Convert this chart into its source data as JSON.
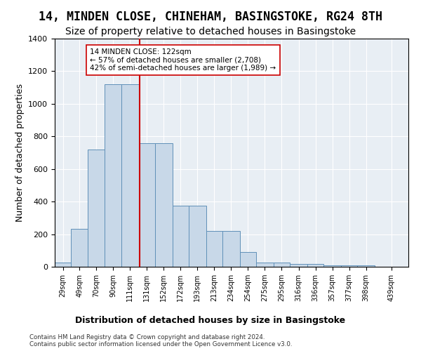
{
  "title": "14, MINDEN CLOSE, CHINEHAM, BASINGSTOKE, RG24 8TH",
  "subtitle": "Size of property relative to detached houses in Basingstoke",
  "xlabel": "Distribution of detached houses by size in Basingstoke",
  "ylabel": "Number of detached properties",
  "bar_color": "#c8d8e8",
  "bar_edge_color": "#6090b8",
  "bar_heights": [
    28,
    234,
    720,
    1120,
    1120,
    760,
    760,
    375,
    375,
    220,
    220,
    90,
    28,
    28,
    18,
    18,
    10,
    8,
    8,
    0
  ],
  "bin_labels": [
    "29sqm",
    "49sqm",
    "70sqm",
    "90sqm",
    "111sqm",
    "131sqm",
    "152sqm",
    "172sqm",
    "193sqm",
    "213sqm",
    "234sqm",
    "254sqm",
    "275sqm",
    "295sqm",
    "316sqm",
    "336sqm",
    "357sqm",
    "377sqm",
    "398sqm",
    "439sqm"
  ],
  "bin_edges": [
    19,
    39,
    59,
    80,
    100,
    121,
    141,
    162,
    182,
    203,
    223,
    244,
    264,
    285,
    305,
    326,
    346,
    367,
    387,
    408,
    449
  ],
  "vline_x": 122,
  "vline_color": "#cc0000",
  "annotation_text": "14 MINDEN CLOSE: 122sqm\n← 57% of detached houses are smaller (2,708)\n42% of semi-detached houses are larger (1,989) →",
  "annotation_box_color": "#ffffff",
  "annotation_box_edge": "#cc0000",
  "ylim": [
    0,
    1400
  ],
  "yticks": [
    0,
    200,
    400,
    600,
    800,
    1000,
    1200,
    1400
  ],
  "footer": "Contains HM Land Registry data © Crown copyright and database right 2024.\nContains public sector information licensed under the Open Government Licence v3.0.",
  "plot_bg_color": "#e8eef4",
  "title_fontsize": 12,
  "subtitle_fontsize": 10,
  "axis_label_fontsize": 9
}
